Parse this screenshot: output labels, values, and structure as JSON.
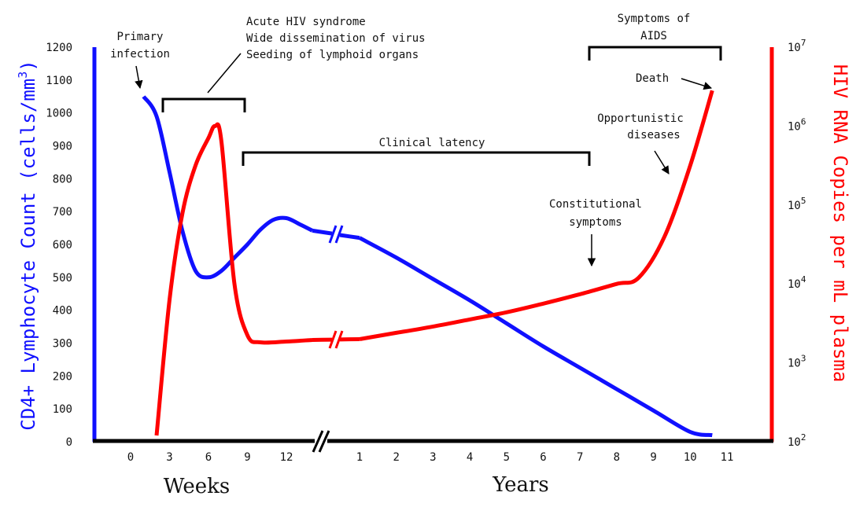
{
  "chart_data": {
    "type": "line",
    "colors": {
      "cd4": "#1010ff",
      "rna": "#ff0000",
      "axis": "#000000"
    },
    "y_left": {
      "label": "CD4+ Lymphocyte Count (cells/mm",
      "label_superscript": "3",
      "label_close": ")",
      "ticks": [
        "0",
        "100",
        "200",
        "300",
        "400",
        "500",
        "600",
        "700",
        "800",
        "900",
        "1000",
        "1100",
        "1200"
      ],
      "ylim": [
        0,
        1200
      ]
    },
    "y_right": {
      "label": "HIV RNA Copies per mL plasma",
      "scale": "log",
      "ticks": [
        {
          "base": "10",
          "exp": "2"
        },
        {
          "base": "10",
          "exp": "3"
        },
        {
          "base": "10",
          "exp": "4"
        },
        {
          "base": "10",
          "exp": "5"
        },
        {
          "base": "10",
          "exp": "6"
        },
        {
          "base": "10",
          "exp": "7"
        }
      ],
      "ylim_log10": [
        2,
        7
      ]
    },
    "x": {
      "weeks_unit": "Weeks",
      "years_unit": "Years",
      "weeks_ticks": [
        "0",
        "3",
        "6",
        "9",
        "12"
      ],
      "years_ticks": [
        "1",
        "2",
        "3",
        "4",
        "5",
        "6",
        "7",
        "8",
        "9",
        "10",
        "11"
      ],
      "break": "between week 12 and year 1"
    },
    "series": [
      {
        "key": "cd4",
        "axis": "left",
        "weeks": [
          [
            1,
            1050
          ],
          [
            2,
            990
          ],
          [
            3,
            820
          ],
          [
            4,
            640
          ],
          [
            5,
            520
          ],
          [
            6,
            500
          ],
          [
            7,
            520
          ],
          [
            8,
            560
          ],
          [
            9,
            600
          ],
          [
            10,
            645
          ],
          [
            11,
            675
          ],
          [
            12,
            680
          ],
          [
            13,
            662
          ],
          [
            14,
            642
          ]
        ],
        "years": [
          [
            1,
            620
          ],
          [
            2,
            560
          ],
          [
            3,
            495
          ],
          [
            4,
            430
          ],
          [
            5,
            360
          ],
          [
            6,
            290
          ],
          [
            7,
            225
          ],
          [
            8,
            160
          ],
          [
            9,
            95
          ],
          [
            10,
            30
          ],
          [
            10.6,
            20
          ]
        ]
      },
      {
        "key": "rna",
        "axis": "right",
        "weeks": [
          [
            2,
            2.08
          ],
          [
            3,
            3.8
          ],
          [
            4,
            4.9
          ],
          [
            5,
            5.5
          ],
          [
            6,
            5.85
          ],
          [
            6.5,
            6.0
          ],
          [
            7,
            5.8
          ],
          [
            8,
            4.0
          ],
          [
            9,
            3.35
          ],
          [
            10,
            3.26
          ],
          [
            12,
            3.27
          ],
          [
            14,
            3.29
          ]
        ],
        "years": [
          [
            1,
            3.3
          ],
          [
            2,
            3.38
          ],
          [
            3,
            3.46
          ],
          [
            4,
            3.55
          ],
          [
            5,
            3.64
          ],
          [
            6,
            3.75
          ],
          [
            7,
            3.87
          ],
          [
            8,
            4.0
          ],
          [
            8.6,
            4.08
          ],
          [
            9.3,
            4.6
          ],
          [
            10,
            5.5
          ],
          [
            10.6,
            6.45
          ]
        ]
      }
    ],
    "annotations": {
      "primary": [
        "Primary",
        "infection"
      ],
      "acute": [
        "Acute HIV syndrome",
        "Wide dissemination of virus",
        "Seeding of lymphoid organs"
      ],
      "latency": "Clinical latency",
      "aids": [
        "Symptoms of",
        "AIDS"
      ],
      "death": "Death",
      "opportunistic": [
        "Opportunistic",
        "diseases"
      ],
      "constitutional": [
        "Constitutional",
        "symptoms"
      ]
    }
  }
}
